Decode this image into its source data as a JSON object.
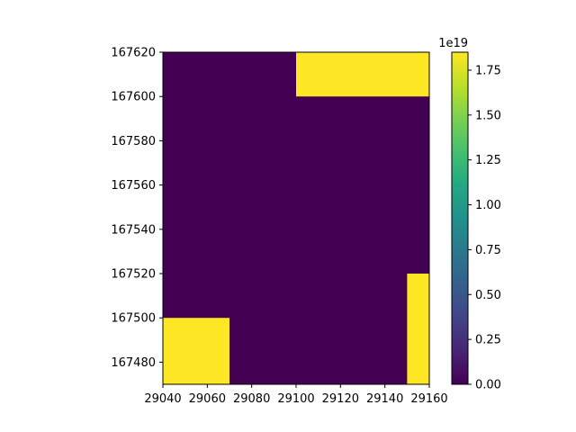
{
  "chart_data": {
    "type": "heatmap",
    "title": "",
    "xlabel": "",
    "ylabel": "",
    "xlim": [
      29040,
      29160
    ],
    "ylim": [
      167470,
      167620
    ],
    "x_ticks": [
      "29040",
      "29060",
      "29080",
      "29100",
      "29120",
      "29140",
      "29160"
    ],
    "y_ticks": [
      "167480",
      "167500",
      "167520",
      "167540",
      "167560",
      "167580",
      "167600",
      "167620"
    ],
    "cells": [
      {
        "x0": 29040,
        "x1": 29160,
        "y0": 167470,
        "y1": 167620,
        "value": 0
      },
      {
        "x0": 29100,
        "x1": 29160,
        "y0": 167600,
        "y1": 167620,
        "value": 1.85e+19
      },
      {
        "x0": 29040,
        "x1": 29070,
        "y0": 167470,
        "y1": 167500,
        "value": 1.85e+19
      },
      {
        "x0": 29150,
        "x1": 29160,
        "y0": 167470,
        "y1": 167520,
        "value": 1.85e+19
      }
    ],
    "colorbar": {
      "colormap": "viridis",
      "vmin": 0,
      "vmax": 1.85e+19,
      "offset_label": "1e19",
      "ticks": [
        "0.00",
        "0.25",
        "0.50",
        "0.75",
        "1.00",
        "1.25",
        "1.50",
        "1.75"
      ]
    },
    "colors": {
      "low": "#440154",
      "high": "#fde725"
    },
    "grid": false
  }
}
